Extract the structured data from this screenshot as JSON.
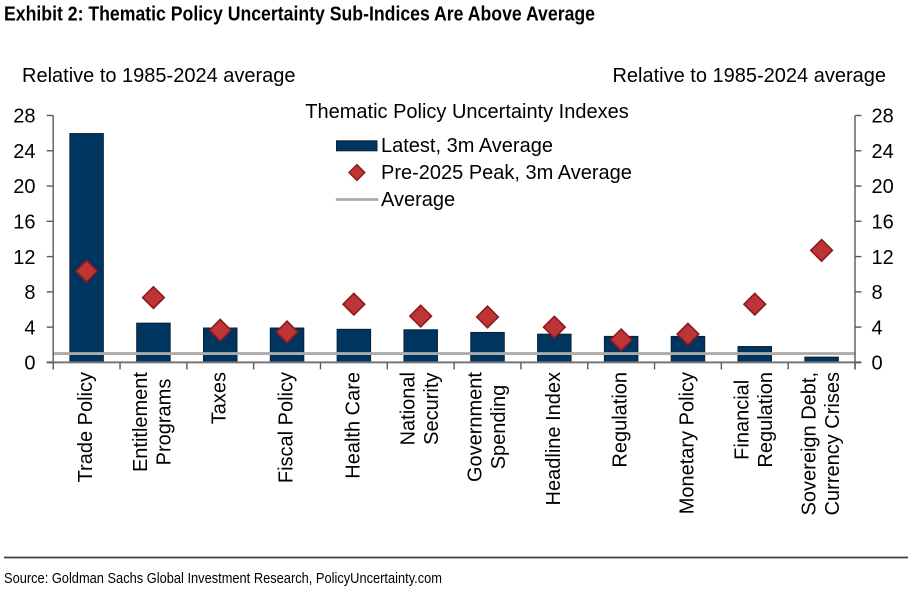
{
  "exhibit_title": "Exhibit 2: Thematic Policy Uncertainty Sub-Indices Are Above Average",
  "axis_note_left": "Relative to 1985-2024 average",
  "axis_note_right": "Relative to 1985-2024 average",
  "source_line": "Source: Goldman Sachs Global Investment Research, PolicyUncertainty.com",
  "legend": {
    "title": "Thematic Policy Uncertainty Indexes",
    "items": [
      {
        "label": "Latest, 3m Average",
        "marker": "bar-swatch"
      },
      {
        "label": "Pre-2025 Peak, 3m Average",
        "marker": "diamond"
      },
      {
        "label": "Average",
        "marker": "line"
      }
    ]
  },
  "colors": {
    "bar_fill": "#00355F",
    "bar_border": "#0A2133",
    "diamond_fill": "#BE3538",
    "diamond_border": "#8B1A1D",
    "average_line": "#ACACAC",
    "axis_line": "#76767A",
    "spine": "#5A5A5A",
    "separator": "#3C3C3C",
    "text": "#000000"
  },
  "chart_data": {
    "type": "bar",
    "title": "Thematic Policy Uncertainty Indexes",
    "ylabel_left": "Relative to 1985-2024 average",
    "ylabel_right": "Relative to 1985-2024 average",
    "ylim": [
      0,
      28
    ],
    "yticks": [
      0,
      4,
      8,
      12,
      16,
      20,
      24,
      28
    ],
    "grid": false,
    "legend_position": "top-center",
    "categories": [
      "Trade Policy",
      "Entitlement\nPrograms",
      "Taxes",
      "Fiscal Policy",
      "Health Care",
      "National\nSecurity",
      "Government\nSpending",
      "Headline Index",
      "Regulation",
      "Monetary Policy",
      "Financial\nRegulation",
      "Sovereign Debt,\nCurrency Crises"
    ],
    "series": [
      {
        "name": "Latest, 3m Average",
        "type": "bar",
        "values": [
          25.95,
          4.45,
          3.9,
          3.9,
          3.75,
          3.7,
          3.4,
          3.2,
          2.95,
          2.95,
          1.8,
          0.6
        ]
      },
      {
        "name": "Pre-2025 Peak, 3m Average",
        "type": "scatter-diamond",
        "values": [
          10.35,
          7.35,
          3.65,
          3.45,
          6.6,
          5.25,
          5.15,
          4.0,
          2.55,
          3.2,
          6.6,
          12.7
        ]
      },
      {
        "name": "Average",
        "type": "horizontal-line",
        "value": 1.0
      }
    ]
  }
}
